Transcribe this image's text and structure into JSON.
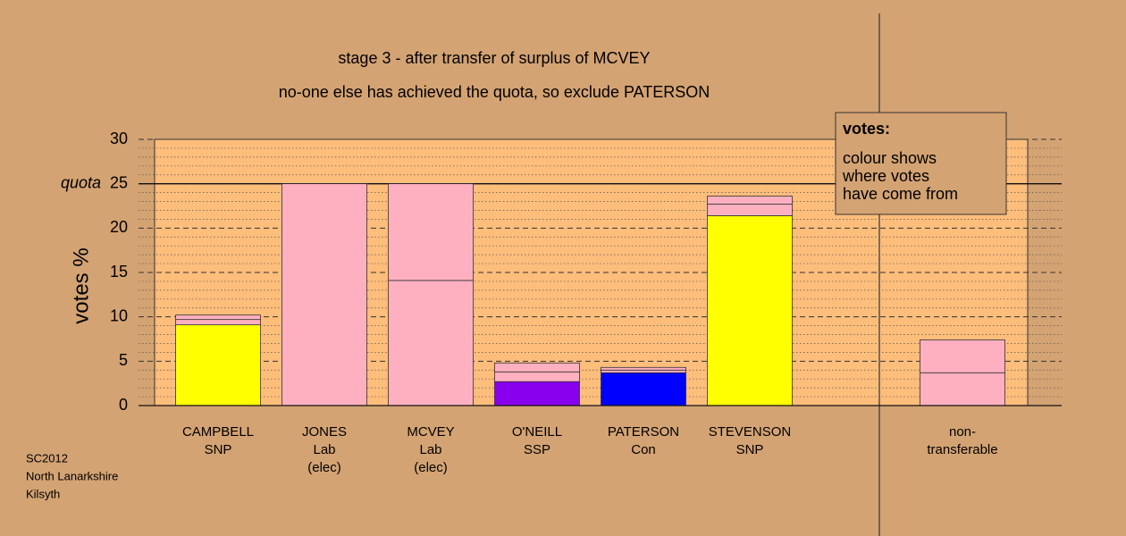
{
  "chart_data": {
    "type": "stacked-bar",
    "title": "stage 3 - after transfer of surplus of MCVEY",
    "subtitle": "no-one else has achieved the quota, so exclude PATERSON",
    "y_label": "votes %",
    "categories": [
      [
        "CAMPBELL",
        "SNP"
      ],
      [
        "JONES",
        "Lab",
        "(elec)"
      ],
      [
        "MCVEY",
        "Lab",
        "(elec)"
      ],
      [
        "O'NEILL",
        "SSP"
      ],
      [
        "PATERSON",
        "Con"
      ],
      [
        "STEVENSON",
        "SNP"
      ],
      null,
      [
        "non-",
        "transferable"
      ]
    ],
    "series": [
      {
        "colors": [
          "#ffff00",
          "#ffb0c0",
          "#ffb0c0",
          "#8800ee",
          "#0000ff",
          "#ffff00",
          null,
          "#ffb0c0"
        ],
        "values": [
          9.1,
          25,
          14.1,
          2.7,
          3.7,
          21.4,
          null,
          3.7
        ]
      },
      {
        "colors": [
          "#ffb0c0",
          null,
          "#ffb0c0",
          "#ffb0c0",
          "#ffb0c0",
          "#ffb0c0",
          null,
          "#ffb0c0"
        ],
        "values": [
          0.6,
          null,
          10.9,
          1.1,
          0.3,
          1.3,
          null,
          3.7
        ]
      },
      {
        "colors": [
          "#ffb0c0",
          null,
          null,
          "#ffb0c0",
          "#ffb0c0",
          "#ffb0c0",
          null,
          null
        ],
        "values": [
          0.5,
          null,
          null,
          1.0,
          0.3,
          0.9,
          null,
          null
        ]
      }
    ],
    "ylim": [
      0,
      30
    ],
    "yticks": [
      0,
      5,
      10,
      15,
      20,
      25,
      30
    ],
    "quota": {
      "value": 25,
      "label": "quota"
    },
    "legend_box": {
      "title": "votes:",
      "lines": [
        "colour shows",
        "where votes",
        "have come from"
      ]
    },
    "footer": [
      "SC2012",
      "North Lanarkshire",
      "Kilsyth"
    ]
  }
}
